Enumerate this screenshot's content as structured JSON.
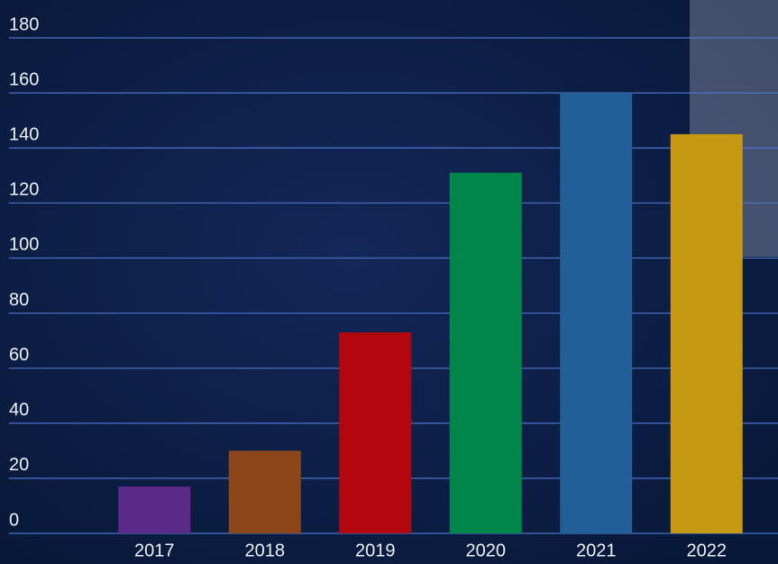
{
  "chart_data": {
    "type": "bar",
    "categories": [
      "2017",
      "2018",
      "2019",
      "2020",
      "2021",
      "2022"
    ],
    "values": [
      17,
      30,
      73,
      131,
      160,
      145
    ],
    "colors": [
      "#5a2a88",
      "#8c461a",
      "#b3070f",
      "#00854a",
      "#225f98",
      "#c59a12"
    ],
    "ylim": [
      0,
      180
    ],
    "yticks": [
      0,
      20,
      40,
      60,
      80,
      100,
      120,
      140,
      160,
      180
    ],
    "grid": true
  }
}
